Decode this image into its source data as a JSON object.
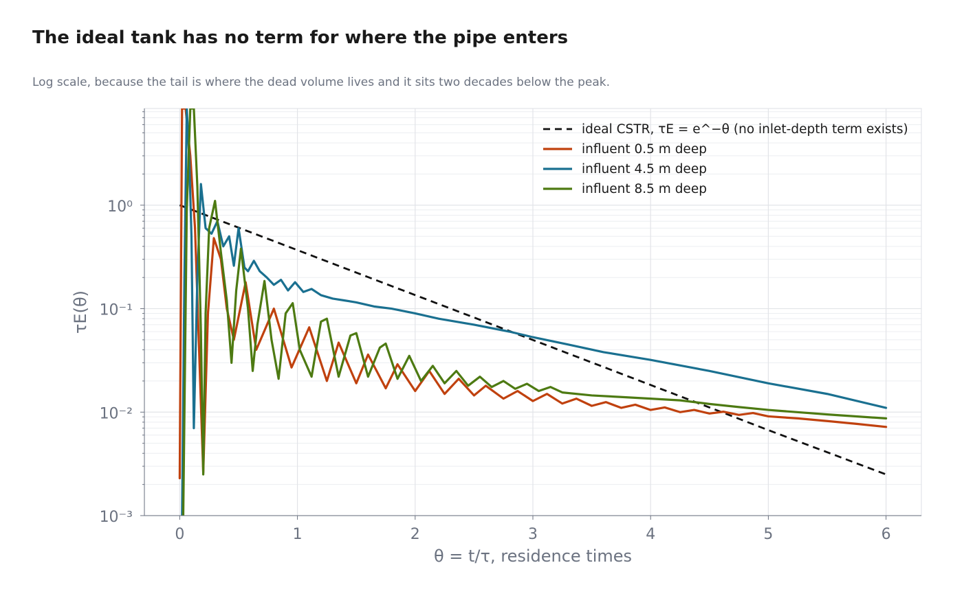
{
  "header": {
    "title": "The ideal tank has no term for where the pipe enters",
    "subtitle": "Log scale, because the tail is where the dead volume lives and it sits two decades below the peak."
  },
  "chart_data": {
    "type": "line",
    "title": "The ideal tank has no term for where the pipe enters",
    "subtitle": "Log scale, because the tail is where the dead volume lives and it sits two decades below the peak.",
    "xlabel": "θ = t/τ,   residence times",
    "ylabel": "τE(θ)",
    "xlim": [
      -0.3,
      6.3
    ],
    "ylim": [
      0.001,
      8.6
    ],
    "yscale": "log",
    "xticks": [
      "0",
      "1",
      "2",
      "3",
      "4",
      "5",
      "6"
    ],
    "yticks": [
      "10⁰",
      "10⁻¹",
      "10⁻²",
      "10⁻³"
    ],
    "grid": true,
    "legend_position": "top-right",
    "series": [
      {
        "name": "ideal CSTR, τE = e^−θ  (no inlet-depth term exists)",
        "style": "dashed",
        "color": "#111111",
        "x": [
          0,
          0.5,
          1,
          1.5,
          2,
          2.5,
          3,
          3.5,
          4,
          4.5,
          5,
          5.5,
          6
        ],
        "y": [
          1.0,
          0.6065,
          0.3679,
          0.2231,
          0.1353,
          0.0821,
          0.0498,
          0.0302,
          0.0183,
          0.0111,
          0.0067,
          0.0041,
          0.0025
        ]
      },
      {
        "name": "influent 0.5 m deep",
        "color": "#c0410e",
        "x": [
          0.0,
          0.02,
          0.05,
          0.09,
          0.13,
          0.18,
          0.2,
          0.24,
          0.29,
          0.35,
          0.4,
          0.46,
          0.56,
          0.65,
          0.8,
          0.95,
          1.1,
          1.25,
          1.35,
          1.5,
          1.6,
          1.75,
          1.85,
          2.0,
          2.12,
          2.25,
          2.37,
          2.5,
          2.6,
          2.75,
          2.87,
          3.0,
          3.12,
          3.25,
          3.37,
          3.5,
          3.62,
          3.75,
          3.87,
          4.0,
          4.12,
          4.25,
          4.37,
          4.5,
          4.62,
          4.75,
          4.87,
          5.0,
          5.25,
          5.5,
          5.75,
          6.0
        ],
        "y": [
          0.0023,
          8.6,
          8.6,
          3.0,
          0.6,
          0.012,
          0.0026,
          0.09,
          0.48,
          0.3,
          0.1,
          0.05,
          0.18,
          0.04,
          0.1,
          0.027,
          0.066,
          0.02,
          0.047,
          0.019,
          0.036,
          0.017,
          0.029,
          0.016,
          0.025,
          0.015,
          0.021,
          0.0145,
          0.018,
          0.0135,
          0.016,
          0.0128,
          0.015,
          0.0121,
          0.0135,
          0.0115,
          0.0125,
          0.011,
          0.0118,
          0.0105,
          0.0111,
          0.01,
          0.0105,
          0.0097,
          0.0101,
          0.0094,
          0.0098,
          0.0091,
          0.0087,
          0.0082,
          0.0077,
          0.0072
        ]
      },
      {
        "name": "influent 4.5 m deep",
        "color": "#1a7090",
        "x": [
          0.02,
          0.04,
          0.06,
          0.08,
          0.1,
          0.12,
          0.15,
          0.18,
          0.22,
          0.27,
          0.32,
          0.37,
          0.42,
          0.46,
          0.5,
          0.55,
          0.58,
          0.63,
          0.68,
          0.74,
          0.8,
          0.86,
          0.92,
          0.98,
          1.05,
          1.12,
          1.2,
          1.3,
          1.4,
          1.5,
          1.65,
          1.8,
          2.0,
          2.2,
          2.5,
          2.8,
          3.0,
          3.3,
          3.6,
          4.0,
          4.5,
          5.0,
          5.5,
          6.0
        ],
        "y": [
          0.001,
          0.2,
          8.6,
          3.0,
          0.5,
          0.007,
          0.2,
          1.6,
          0.6,
          0.53,
          0.7,
          0.4,
          0.5,
          0.26,
          0.6,
          0.25,
          0.23,
          0.29,
          0.23,
          0.2,
          0.17,
          0.19,
          0.15,
          0.18,
          0.145,
          0.155,
          0.135,
          0.125,
          0.12,
          0.115,
          0.105,
          0.1,
          0.09,
          0.08,
          0.07,
          0.06,
          0.053,
          0.045,
          0.038,
          0.032,
          0.025,
          0.019,
          0.015,
          0.011
        ]
      },
      {
        "name": "influent 8.5 m deep",
        "color": "#4d7a12",
        "x": [
          0.03,
          0.06,
          0.09,
          0.12,
          0.15,
          0.18,
          0.2,
          0.22,
          0.25,
          0.3,
          0.35,
          0.4,
          0.44,
          0.48,
          0.52,
          0.58,
          0.62,
          0.66,
          0.72,
          0.78,
          0.84,
          0.9,
          0.96,
          1.02,
          1.12,
          1.2,
          1.25,
          1.35,
          1.45,
          1.5,
          1.6,
          1.7,
          1.75,
          1.85,
          1.95,
          2.05,
          2.15,
          2.25,
          2.35,
          2.45,
          2.55,
          2.65,
          2.75,
          2.85,
          2.95,
          3.05,
          3.15,
          3.25,
          3.5,
          3.75,
          4.0,
          4.25,
          4.5,
          4.75,
          5.0,
          5.5,
          6.0
        ],
        "y": [
          0.001,
          0.9,
          8.6,
          8.6,
          1.5,
          0.06,
          0.0025,
          0.09,
          0.6,
          1.1,
          0.35,
          0.12,
          0.03,
          0.15,
          0.38,
          0.1,
          0.025,
          0.07,
          0.185,
          0.05,
          0.021,
          0.09,
          0.113,
          0.04,
          0.022,
          0.075,
          0.08,
          0.022,
          0.055,
          0.058,
          0.022,
          0.042,
          0.046,
          0.021,
          0.035,
          0.02,
          0.028,
          0.019,
          0.025,
          0.018,
          0.022,
          0.0175,
          0.02,
          0.0168,
          0.0188,
          0.016,
          0.0175,
          0.0155,
          0.0145,
          0.014,
          0.0135,
          0.013,
          0.012,
          0.0112,
          0.0105,
          0.0095,
          0.0087
        ]
      }
    ]
  }
}
